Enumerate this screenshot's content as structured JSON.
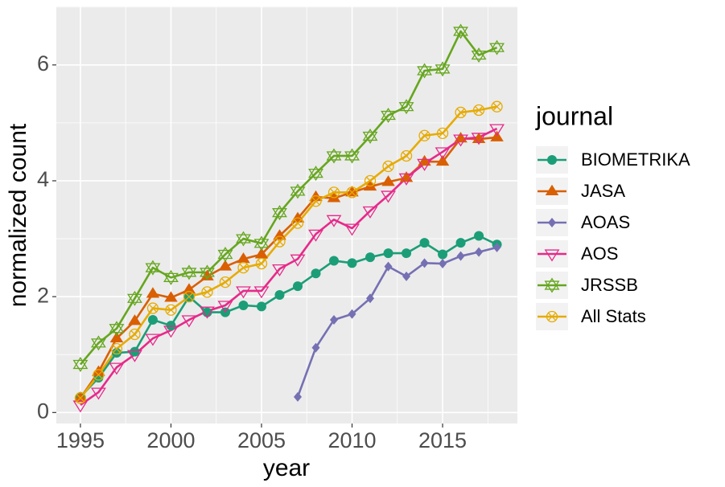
{
  "chart_data": {
    "type": "line",
    "x_label": "year",
    "y_label": "normalized count",
    "legend_title": "journal",
    "x": [
      1995,
      1996,
      1997,
      1998,
      1999,
      2000,
      2001,
      2002,
      2003,
      2004,
      2005,
      2006,
      2007,
      2008,
      2009,
      2010,
      2011,
      2012,
      2013,
      2014,
      2015,
      2016,
      2017,
      2018
    ],
    "series": [
      {
        "name": "BIOMETRIKA",
        "color": "#1b9e77",
        "shape": "circle",
        "values": [
          0.27,
          0.6,
          1.03,
          1.05,
          1.6,
          1.5,
          2.0,
          1.73,
          1.73,
          1.85,
          1.83,
          2.03,
          2.18,
          2.4,
          2.62,
          2.58,
          2.68,
          2.75,
          2.75,
          2.93,
          2.73,
          2.93,
          3.05,
          2.9
        ]
      },
      {
        "name": "JASA",
        "color": "#d95f02",
        "shape": "triangle",
        "values": [
          0.25,
          0.7,
          1.28,
          1.58,
          2.05,
          1.98,
          2.12,
          2.35,
          2.52,
          2.65,
          2.73,
          3.05,
          3.35,
          3.72,
          3.7,
          3.8,
          3.9,
          3.98,
          4.05,
          4.33,
          4.33,
          4.73,
          4.72,
          4.75
        ]
      },
      {
        "name": "AOAS",
        "color": "#7570b3",
        "shape": "diamond",
        "values": [
          null,
          null,
          null,
          null,
          null,
          null,
          null,
          null,
          null,
          null,
          null,
          null,
          0.27,
          1.12,
          1.6,
          1.7,
          1.97,
          2.52,
          2.35,
          2.58,
          2.57,
          2.7,
          2.77,
          2.85
        ]
      },
      {
        "name": "AOS",
        "color": "#e7298a",
        "shape": "triangle-down-open",
        "values": [
          0.13,
          0.35,
          0.78,
          1.0,
          1.28,
          1.42,
          1.6,
          1.75,
          1.85,
          2.1,
          2.1,
          2.48,
          2.65,
          3.08,
          3.33,
          3.18,
          3.48,
          3.75,
          4.05,
          4.3,
          4.5,
          4.72,
          4.75,
          4.9
        ]
      },
      {
        "name": "JRSSB",
        "color": "#66a61e",
        "shape": "star-open",
        "values": [
          0.83,
          1.2,
          1.45,
          1.97,
          2.5,
          2.33,
          2.42,
          2.42,
          2.73,
          3.0,
          2.92,
          3.45,
          3.82,
          4.13,
          4.43,
          4.43,
          4.77,
          5.13,
          5.28,
          5.9,
          5.93,
          6.58,
          6.17,
          6.3
        ]
      },
      {
        "name": "All Stats",
        "color": "#e6ab02",
        "shape": "circle-cross-open",
        "values": [
          0.25,
          0.65,
          1.1,
          1.35,
          1.8,
          1.77,
          2.0,
          2.08,
          2.25,
          2.5,
          2.57,
          2.95,
          3.27,
          3.65,
          3.8,
          3.8,
          4.0,
          4.25,
          4.43,
          4.78,
          4.82,
          5.18,
          5.22,
          5.28
        ]
      }
    ],
    "xlim": [
      1993.67,
      2019.13
    ],
    "ylim": [
      -0.19,
      7.01
    ],
    "xticks": [
      1995,
      2000,
      2005,
      2010,
      2015
    ],
    "yticks": [
      0,
      2,
      4,
      6
    ],
    "grid": true,
    "legend": "right"
  }
}
